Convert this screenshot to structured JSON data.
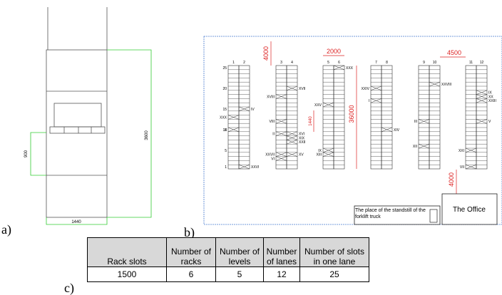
{
  "panel_a": {
    "label": "a)",
    "dimensions": [
      "900",
      "3600",
      "1440"
    ]
  },
  "panel_b": {
    "label": "b)",
    "column_numbers": [
      "1",
      "2",
      "3",
      "4",
      "5",
      "6",
      "7",
      "8",
      "9",
      "10",
      "11",
      "12"
    ],
    "level_numbers": [
      "25",
      "20",
      "15",
      "10",
      "5",
      "1"
    ],
    "slot_labels": [
      "IV",
      "XXX",
      "X",
      "XXVI",
      "XVIII",
      "XVII",
      "VIII",
      "II",
      "XVI",
      "XIX",
      "XXII",
      "XXVII",
      "VI",
      "XV",
      "XXX",
      "XXV",
      "IX",
      "XIII",
      "XXIV",
      "I",
      "XIV",
      "XXVIII",
      "III",
      "XII",
      "IX",
      "XX",
      "XXIII",
      "V",
      "XXI",
      "VII"
    ],
    "dimensions": [
      "4000",
      "2000",
      "4500",
      "36000",
      "1440",
      "4000"
    ],
    "forklift_note": "The place of the standstill of the forklift truck",
    "office": "The Office"
  },
  "panel_c": {
    "label": "c)",
    "table": {
      "header": [
        "Rack slots",
        "Number of racks",
        "Number of levels",
        "Number of lanes",
        "Number of slots in one lane"
      ],
      "rows": [
        [
          "1500",
          "6",
          "5",
          "12",
          "25"
        ]
      ]
    }
  }
}
